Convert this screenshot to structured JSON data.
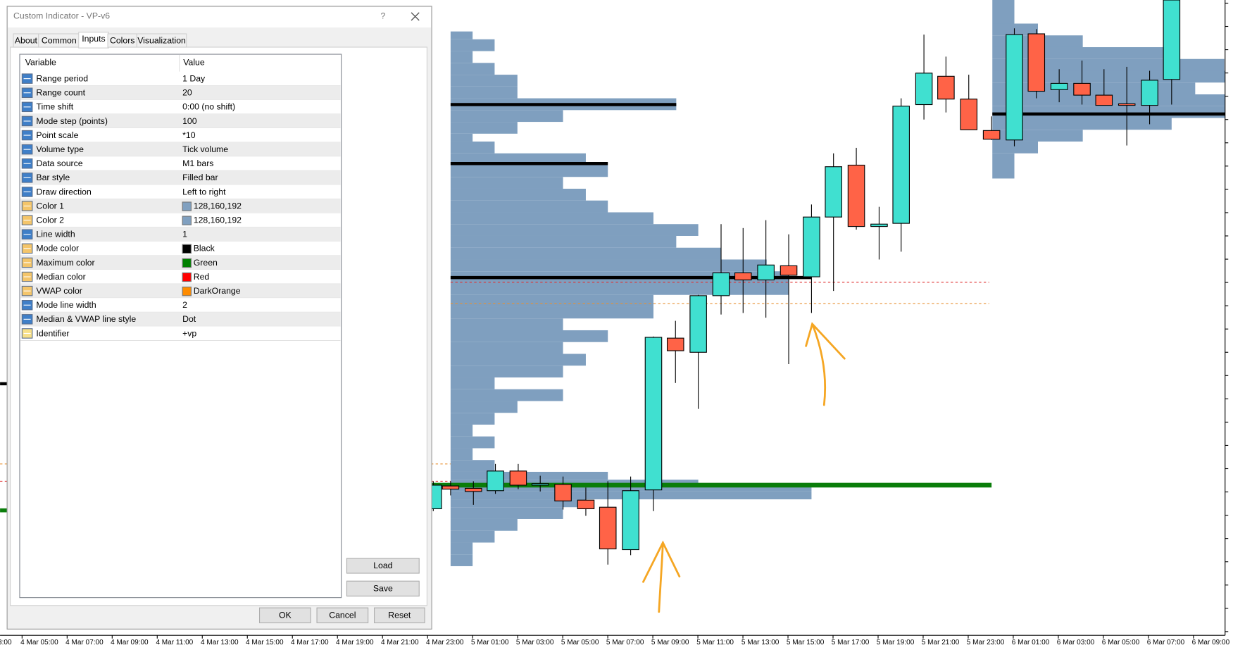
{
  "dialog": {
    "title": "Custom Indicator - VP-v6",
    "help": "?",
    "tabs": [
      "About",
      "Common",
      "Inputs",
      "Colors",
      "Visualization"
    ],
    "table": {
      "header": [
        "Variable",
        "Value"
      ],
      "rows": [
        [
          "Range period",
          "1 Day"
        ],
        [
          "Range count",
          "20"
        ],
        [
          "Time shift",
          "0:00 (no shift)"
        ],
        [
          "Mode step (points)",
          "100"
        ],
        [
          "Point scale",
          "*10"
        ],
        [
          "Volume type",
          "Tick volume"
        ],
        [
          "Data source",
          "M1 bars"
        ],
        [
          "Bar style",
          "Filled bar"
        ],
        [
          "Draw direction",
          "Left to right"
        ],
        [
          "Color 1",
          "128,160,192"
        ],
        [
          "Color 2",
          "128,160,192"
        ],
        [
          "Line width",
          "1"
        ],
        [
          "Mode color",
          "Black"
        ],
        [
          "Maximum color",
          "Green"
        ],
        [
          "Median color",
          "Red"
        ],
        [
          "VWAP color",
          "DarkOrange"
        ],
        [
          "Mode line width",
          "2"
        ],
        [
          "Median & VWAP line style",
          "Dot"
        ],
        [
          "Identifier",
          "+vp"
        ]
      ]
    },
    "buttons": {
      "load": "Load",
      "save": "Save",
      "ok": "OK",
      "cancel": "Cancel",
      "reset": "Reset"
    }
  },
  "time_axis": [
    "3:00",
    "4 Mar 05:00",
    "4 Mar 07:00",
    "4 Mar 09:00",
    "4 Mar 11:00",
    "4 Mar 13:00",
    "4 Mar 15:00",
    "4 Mar 17:00",
    "4 Mar 19:00",
    "4 Mar 21:00",
    "4 Mar 23:00",
    "5 Mar 01:00",
    "5 Mar 03:00",
    "5 Mar 05:00",
    "5 Mar 07:00",
    "5 Mar 09:00",
    "5 Mar 11:00",
    "5 Mar 13:00",
    "5 Mar 15:00",
    "5 Mar 17:00",
    "5 Mar 19:00",
    "5 Mar 21:00",
    "5 Mar 23:00",
    "6 Mar 01:00",
    "6 Mar 03:00",
    "6 Mar 05:00",
    "6 Mar 07:00",
    "6 Mar 09:00"
  ]
}
